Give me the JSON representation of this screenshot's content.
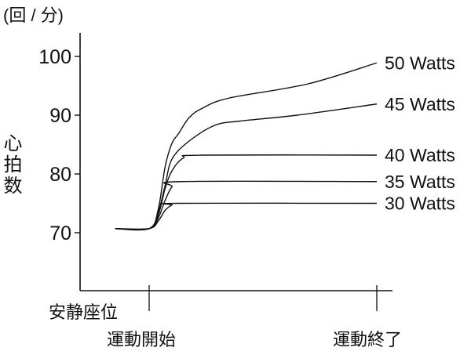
{
  "chart_data": {
    "type": "line",
    "title": "",
    "unit_label": "(回 / 分)",
    "ylabel": "心拍数",
    "xlabel": "",
    "ylim": [
      62,
      104
    ],
    "yticks": [
      100,
      90,
      80,
      70
    ],
    "x_labels": {
      "rest": "安静座位",
      "start": "運動開始",
      "end": "運動終了"
    },
    "x_markers": [
      0,
      1
    ],
    "grid": false,
    "legend": "inline-right",
    "line_color": "#111111",
    "series": [
      {
        "name": "50 Watts",
        "x": [
          -0.15,
          0,
          0.04,
          0.07,
          0.1,
          0.13,
          0.176,
          0.235,
          0.35,
          0.695,
          1
        ],
        "y": [
          70.7,
          70.7,
          74,
          81.2,
          85.2,
          86.9,
          89.6,
          91.2,
          92.9,
          95.3,
          98.9
        ]
      },
      {
        "name": "45 Watts",
        "x": [
          -0.15,
          0,
          0.04,
          0.07,
          0.1,
          0.176,
          0.29,
          0.4,
          0.65,
          1
        ],
        "y": [
          70.7,
          70.7,
          73.5,
          78,
          82.5,
          85.6,
          88.3,
          89,
          90,
          91.9
        ]
      },
      {
        "name": "40 Watts",
        "x": [
          -0.15,
          0,
          0.04,
          0.07,
          0.1,
          0.15,
          0.23,
          1
        ],
        "y": [
          70.7,
          70.7,
          73,
          77.5,
          80.5,
          82.7,
          83.2,
          83.2
        ]
      },
      {
        "name": "35 Watts",
        "x": [
          -0.15,
          0,
          0.04,
          0.07,
          0.1,
          0.14,
          1
        ],
        "y": [
          70.7,
          70.7,
          72.5,
          75.5,
          77.8,
          78.7,
          78.7
        ]
      },
      {
        "name": "30 Watts",
        "x": [
          -0.15,
          0,
          0.04,
          0.07,
          0.1,
          0.13,
          1
        ],
        "y": [
          70.7,
          70.7,
          72,
          73.8,
          74.7,
          75,
          75
        ]
      }
    ]
  }
}
